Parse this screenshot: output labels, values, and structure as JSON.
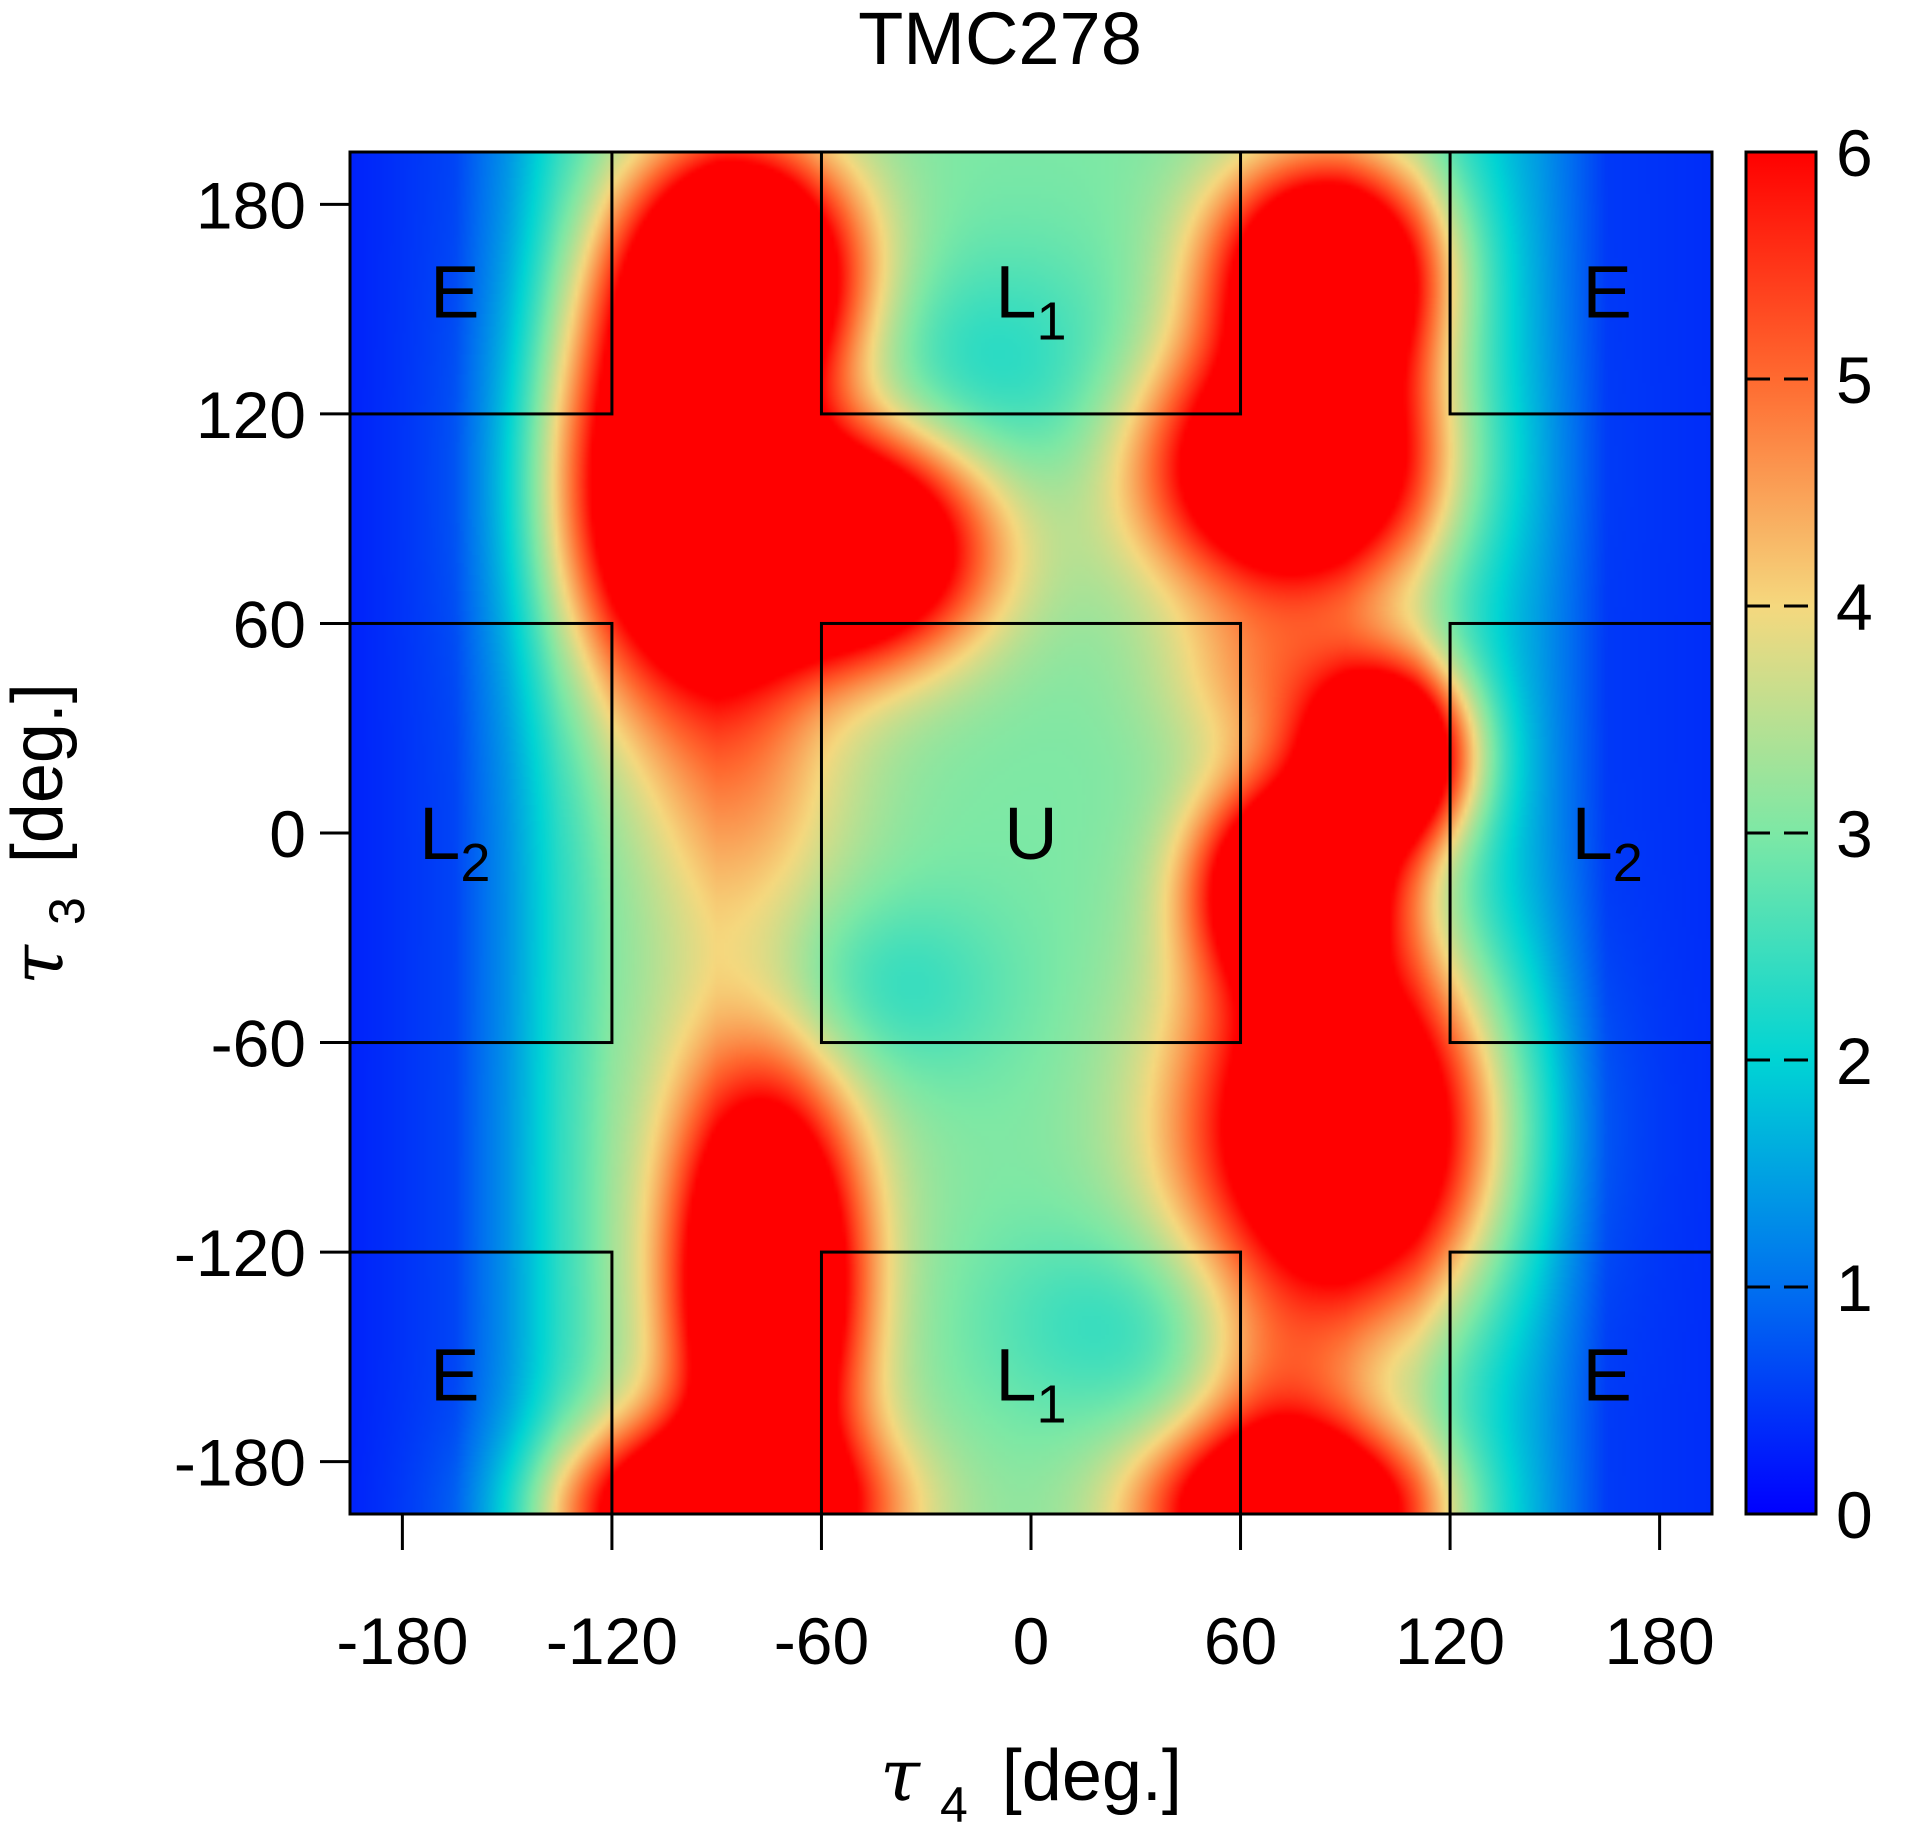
{
  "chart_data": {
    "type": "heatmap",
    "title": "TMC278",
    "xlabel": {
      "symbol": "τ",
      "sub": "4",
      "unit": "[deg.]"
    },
    "ylabel": {
      "symbol": "τ",
      "sub": "3",
      "unit": "[deg.]"
    },
    "xlim": [
      -195,
      195
    ],
    "ylim": [
      -195,
      195
    ],
    "xticks": [
      -180,
      -120,
      -60,
      0,
      60,
      120,
      180
    ],
    "yticks": [
      -180,
      -120,
      -60,
      0,
      60,
      120,
      180
    ],
    "xtick_labels": [
      "-180",
      "-120",
      "-60",
      "0",
      "60",
      "120",
      "180"
    ],
    "ytick_labels": [
      "-180",
      "-120",
      "-60",
      "0",
      "60",
      "120",
      "180"
    ],
    "colorbar": {
      "range": [
        0,
        6
      ],
      "ticks": [
        0,
        1,
        2,
        3,
        4,
        5,
        6
      ],
      "tick_labels": [
        "0",
        "1",
        "2",
        "3",
        "4",
        "5",
        "6"
      ]
    },
    "colormap": [
      "#0000ff",
      "#0070f0",
      "#00d4d4",
      "#7de8a5",
      "#f5d87e",
      "#ff6a30",
      "#ff0000"
    ],
    "regions": [
      {
        "label": "E",
        "sub": "",
        "x": [
          -195,
          -120
        ],
        "y": [
          120,
          195
        ]
      },
      {
        "label": "L",
        "sub": "1",
        "x": [
          -60,
          60
        ],
        "y": [
          120,
          195
        ]
      },
      {
        "label": "E",
        "sub": "",
        "x": [
          120,
          195
        ],
        "y": [
          120,
          195
        ]
      },
      {
        "label": "L",
        "sub": "2",
        "x": [
          -195,
          -120
        ],
        "y": [
          -60,
          60
        ]
      },
      {
        "label": "U",
        "sub": "",
        "x": [
          -60,
          60
        ],
        "y": [
          -60,
          60
        ]
      },
      {
        "label": "L",
        "sub": "2",
        "x": [
          120,
          195
        ],
        "y": [
          -60,
          60
        ]
      },
      {
        "label": "E",
        "sub": "",
        "x": [
          -195,
          -120
        ],
        "y": [
          -195,
          -120
        ]
      },
      {
        "label": "L",
        "sub": "1",
        "x": [
          -60,
          60
        ],
        "y": [
          -195,
          -120
        ]
      },
      {
        "label": "E",
        "sub": "",
        "x": [
          120,
          195
        ],
        "y": [
          -195,
          -120
        ]
      }
    ],
    "energy_model": {
      "x_profile": [
        [
          -195,
          0.3
        ],
        [
          -165,
          0.6
        ],
        [
          -150,
          1.3
        ],
        [
          -135,
          2.2
        ],
        [
          -120,
          2.8
        ],
        [
          -90,
          3.3
        ],
        [
          -60,
          3.0
        ],
        [
          0,
          3.0
        ],
        [
          60,
          3.0
        ],
        [
          90,
          3.0
        ],
        [
          110,
          2.7
        ],
        [
          125,
          2.1
        ],
        [
          145,
          1.4
        ],
        [
          165,
          0.5
        ],
        [
          195,
          0.4
        ]
      ],
      "peaks": [
        {
          "x": -82,
          "y": 160,
          "sx": 22,
          "sy": 24,
          "h": 6
        },
        {
          "x": -100,
          "y": 100,
          "sx": 24,
          "sy": 40,
          "h": 6
        },
        {
          "x": -52,
          "y": 82,
          "sx": 26,
          "sy": 22,
          "h": 6
        },
        {
          "x": 85,
          "y": 160,
          "sx": 22,
          "sy": 22,
          "h": 6
        },
        {
          "x": 75,
          "y": 105,
          "sx": 28,
          "sy": 24,
          "h": 6
        },
        {
          "x": 103,
          "y": 22,
          "sx": 16,
          "sy": 18,
          "h": 6
        },
        {
          "x": 75,
          "y": -15,
          "sx": 18,
          "sy": 20,
          "h": 6
        },
        {
          "x": 90,
          "y": -85,
          "sx": 30,
          "sy": 36,
          "h": 6
        },
        {
          "x": -75,
          "y": -130,
          "sx": 17,
          "sy": 38,
          "h": 6
        },
        {
          "x": -90,
          "y": -195,
          "sx": 30,
          "sy": 17,
          "h": 6
        },
        {
          "x": 75,
          "y": -195,
          "sx": 27,
          "sy": 17,
          "h": 6
        },
        {
          "x": -80,
          "y": 15,
          "sx": 22,
          "sy": 30,
          "h": 1.0
        },
        {
          "x": 70,
          "y": 45,
          "sx": 22,
          "sy": 18,
          "h": 1.4
        },
        {
          "x": 70,
          "y": -160,
          "sx": 16,
          "sy": 22,
          "h": 1.3
        },
        {
          "x": -82,
          "y": -100,
          "sx": 30,
          "sy": 60,
          "h": 0.8
        },
        {
          "x": -15,
          "y": 130,
          "sx": 35,
          "sy": 25,
          "h": -0.8
        },
        {
          "x": -45,
          "y": -45,
          "sx": 25,
          "sy": 20,
          "h": -0.8
        },
        {
          "x": 30,
          "y": -140,
          "sx": 30,
          "sy": 20,
          "h": -0.7
        }
      ]
    }
  }
}
